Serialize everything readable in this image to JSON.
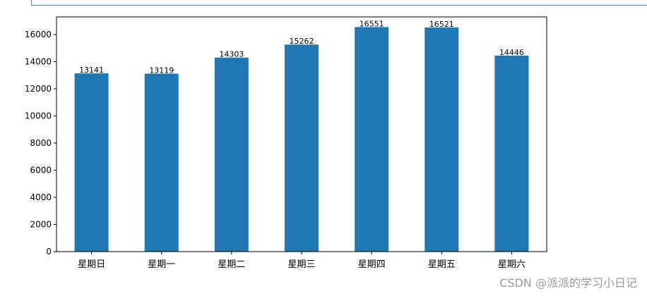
{
  "chart_data": {
    "type": "bar",
    "categories": [
      "星期日",
      "星期一",
      "星期二",
      "星期三",
      "星期四",
      "星期五",
      "星期六"
    ],
    "values": [
      13141,
      13119,
      14303,
      15262,
      16551,
      16521,
      14446
    ],
    "ylim": [
      0,
      17300
    ],
    "yticks": [
      0,
      2000,
      4000,
      6000,
      8000,
      10000,
      12000,
      14000,
      16000
    ],
    "bar_color": "#1f77b4",
    "title": "",
    "xlabel": "",
    "ylabel": "",
    "grid": false
  },
  "watermark": "CSDN @派派的学习小日记"
}
